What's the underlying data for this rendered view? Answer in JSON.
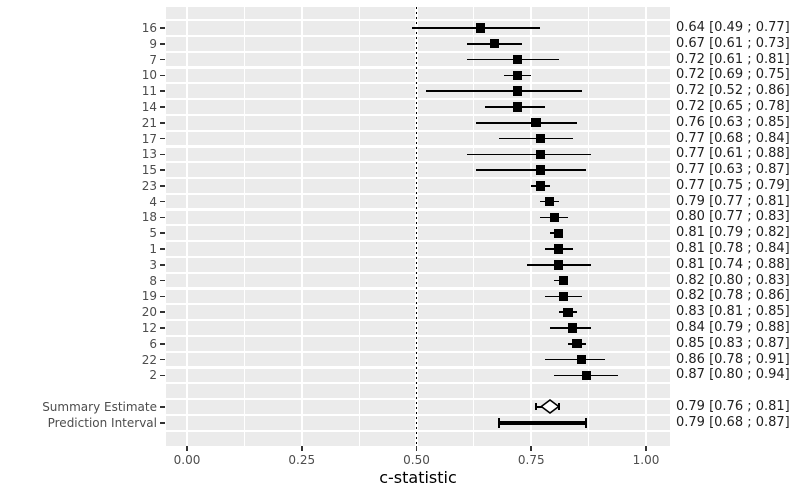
{
  "chart_data": {
    "type": "forest",
    "title": "",
    "xlabel": "c-statistic",
    "x_ticks": [
      {
        "label": "0.00",
        "value": 0.0
      },
      {
        "label": "0.25",
        "value": 0.25
      },
      {
        "label": "0.50",
        "value": 0.5
      },
      {
        "label": "0.75",
        "value": 0.75
      },
      {
        "label": "1.00",
        "value": 1.0
      }
    ],
    "x_minor_step": 0.125,
    "xlim": [
      -0.046,
      1.052
    ],
    "reference_line": 0.5,
    "grid": "on",
    "legend": "none",
    "colors": {
      "panel_bg": "#ebebeb",
      "grid": "#ffffff",
      "marker": "#000000",
      "axis_text": "#4d4d4d",
      "annotation_text": "#212121",
      "tick": "#333333"
    },
    "studies": [
      {
        "label": "16",
        "est": 0.64,
        "lo": 0.49,
        "hi": 0.77,
        "annotation": "0.64 [0.49 ; 0.77]"
      },
      {
        "label": "9",
        "est": 0.67,
        "lo": 0.61,
        "hi": 0.73,
        "annotation": "0.67 [0.61 ; 0.73]"
      },
      {
        "label": "7",
        "est": 0.72,
        "lo": 0.61,
        "hi": 0.81,
        "annotation": "0.72 [0.61 ; 0.81]"
      },
      {
        "label": "10",
        "est": 0.72,
        "lo": 0.69,
        "hi": 0.75,
        "annotation": "0.72 [0.69 ; 0.75]"
      },
      {
        "label": "11",
        "est": 0.72,
        "lo": 0.52,
        "hi": 0.86,
        "annotation": "0.72 [0.52 ; 0.86]"
      },
      {
        "label": "14",
        "est": 0.72,
        "lo": 0.65,
        "hi": 0.78,
        "annotation": "0.72 [0.65 ; 0.78]"
      },
      {
        "label": "21",
        "est": 0.76,
        "lo": 0.63,
        "hi": 0.85,
        "annotation": "0.76 [0.63 ; 0.85]"
      },
      {
        "label": "17",
        "est": 0.77,
        "lo": 0.68,
        "hi": 0.84,
        "annotation": "0.77 [0.68 ; 0.84]"
      },
      {
        "label": "13",
        "est": 0.77,
        "lo": 0.61,
        "hi": 0.88,
        "annotation": "0.77 [0.61 ; 0.88]"
      },
      {
        "label": "15",
        "est": 0.77,
        "lo": 0.63,
        "hi": 0.87,
        "annotation": "0.77 [0.63 ; 0.87]"
      },
      {
        "label": "23",
        "est": 0.77,
        "lo": 0.75,
        "hi": 0.79,
        "annotation": "0.77 [0.75 ; 0.79]"
      },
      {
        "label": "4",
        "est": 0.79,
        "lo": 0.77,
        "hi": 0.81,
        "annotation": "0.79 [0.77 ; 0.81]"
      },
      {
        "label": "18",
        "est": 0.8,
        "lo": 0.77,
        "hi": 0.83,
        "annotation": "0.80 [0.77 ; 0.83]"
      },
      {
        "label": "5",
        "est": 0.81,
        "lo": 0.79,
        "hi": 0.82,
        "annotation": "0.81 [0.79 ; 0.82]"
      },
      {
        "label": "1",
        "est": 0.81,
        "lo": 0.78,
        "hi": 0.84,
        "annotation": "0.81 [0.78 ; 0.84]"
      },
      {
        "label": "3",
        "est": 0.81,
        "lo": 0.74,
        "hi": 0.88,
        "annotation": "0.81 [0.74 ; 0.88]"
      },
      {
        "label": "8",
        "est": 0.82,
        "lo": 0.8,
        "hi": 0.83,
        "annotation": "0.82 [0.80 ; 0.83]"
      },
      {
        "label": "19",
        "est": 0.82,
        "lo": 0.78,
        "hi": 0.86,
        "annotation": "0.82 [0.78 ; 0.86]"
      },
      {
        "label": "20",
        "est": 0.83,
        "lo": 0.81,
        "hi": 0.85,
        "annotation": "0.83 [0.81 ; 0.85]"
      },
      {
        "label": "12",
        "est": 0.84,
        "lo": 0.79,
        "hi": 0.88,
        "annotation": "0.84 [0.79 ; 0.88]"
      },
      {
        "label": "6",
        "est": 0.85,
        "lo": 0.83,
        "hi": 0.87,
        "annotation": "0.85 [0.83 ; 0.87]"
      },
      {
        "label": "22",
        "est": 0.86,
        "lo": 0.78,
        "hi": 0.91,
        "annotation": "0.86 [0.78 ; 0.91]"
      },
      {
        "label": "2",
        "est": 0.87,
        "lo": 0.8,
        "hi": 0.94,
        "annotation": "0.87 [0.80 ; 0.94]"
      }
    ],
    "summary": {
      "label": "Summary Estimate",
      "est": 0.79,
      "lo": 0.76,
      "hi": 0.81,
      "annotation": "0.79 [0.76 ; 0.81]",
      "marker": "diamond"
    },
    "prediction": {
      "label": "Prediction Interval",
      "est": 0.79,
      "lo": 0.68,
      "hi": 0.87,
      "annotation": "0.79 [0.68 ; 0.87]",
      "marker": "capped-bar"
    }
  }
}
